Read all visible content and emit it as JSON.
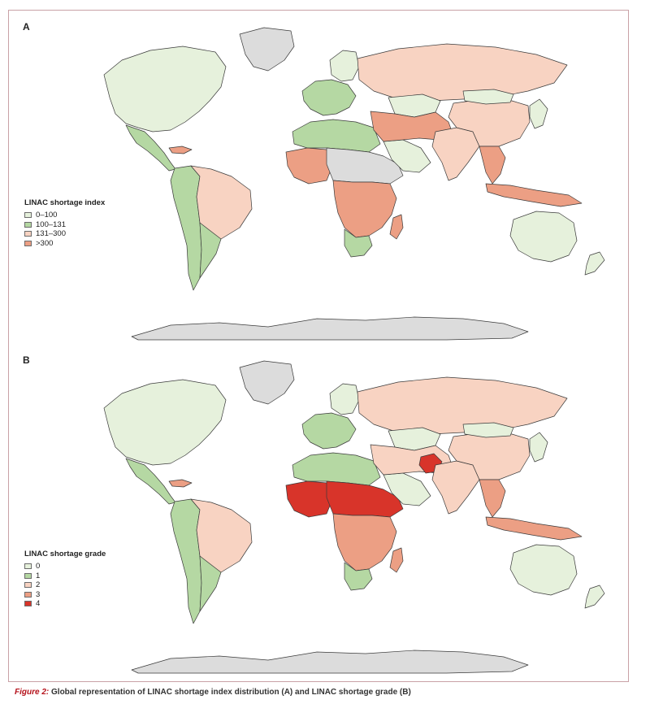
{
  "colors": {
    "frame": "#c9a1a6",
    "water": "#ffffff",
    "nodata": "#dcdcdc",
    "c0": "#e6f1dc",
    "c1": "#b5d8a3",
    "c2": "#f8d3c2",
    "c3": "#ec9f84",
    "c4": "#d8342a",
    "stroke": "#3a3a3a"
  },
  "panel_a": {
    "letter": "A",
    "legend_title": "LINAC shortage index",
    "legend": [
      {
        "label": "0–100",
        "color": "#e6f1dc"
      },
      {
        "label": "100–131",
        "color": "#b5d8a3"
      },
      {
        "label": "131–300",
        "color": "#f8d3c2"
      },
      {
        "label": ">300",
        "color": "#ec9f84"
      }
    ],
    "regions": [
      {
        "name": "North America",
        "color": "#e6f1dc"
      },
      {
        "name": "Greenland",
        "color": "#dcdcdc"
      },
      {
        "name": "Mexico & Central America",
        "color": "#b5d8a3"
      },
      {
        "name": "Caribbean",
        "color": "#ec9f84"
      },
      {
        "name": "Western South America",
        "color": "#b5d8a3"
      },
      {
        "name": "Brazil",
        "color": "#f8d3c2"
      },
      {
        "name": "Southern Cone",
        "color": "#b5d8a3"
      },
      {
        "name": "Western Europe",
        "color": "#b5d8a3"
      },
      {
        "name": "Scandinavia",
        "color": "#e6f1dc"
      },
      {
        "name": "Russia",
        "color": "#f8d3c2"
      },
      {
        "name": "Kazakhstan",
        "color": "#e6f1dc"
      },
      {
        "name": "North Africa",
        "color": "#b5d8a3"
      },
      {
        "name": "West Africa",
        "color": "#ec9f84"
      },
      {
        "name": "Sahel",
        "color": "#dcdcdc"
      },
      {
        "name": "Central & East Africa",
        "color": "#ec9f84"
      },
      {
        "name": "Southern Africa",
        "color": "#b5d8a3"
      },
      {
        "name": "Madagascar",
        "color": "#ec9f84"
      },
      {
        "name": "Arabian Peninsula",
        "color": "#e6f1dc"
      },
      {
        "name": "Middle East & Central Asia",
        "color": "#ec9f84"
      },
      {
        "name": "South Asia",
        "color": "#f8d3c2"
      },
      {
        "name": "China",
        "color": "#f8d3c2"
      },
      {
        "name": "Mongolia",
        "color": "#e6f1dc"
      },
      {
        "name": "Southeast Asia",
        "color": "#ec9f84"
      },
      {
        "name": "Japan & Korea",
        "color": "#e6f1dc"
      },
      {
        "name": "Indonesia",
        "color": "#ec9f84"
      },
      {
        "name": "Australia",
        "color": "#e6f1dc"
      },
      {
        "name": "New Zealand",
        "color": "#e6f1dc"
      },
      {
        "name": "Antarctica",
        "color": "#dcdcdc"
      }
    ]
  },
  "panel_b": {
    "letter": "B",
    "legend_title": "LINAC shortage grade",
    "legend": [
      {
        "label": "0",
        "color": "#e6f1dc"
      },
      {
        "label": "1",
        "color": "#b5d8a3"
      },
      {
        "label": "2",
        "color": "#f8d3c2"
      },
      {
        "label": "3",
        "color": "#ec9f84"
      },
      {
        "label": "4",
        "color": "#d8342a"
      }
    ],
    "regions": [
      {
        "name": "North America",
        "color": "#e6f1dc"
      },
      {
        "name": "Greenland",
        "color": "#dcdcdc"
      },
      {
        "name": "Mexico & Central America",
        "color": "#b5d8a3"
      },
      {
        "name": "Caribbean",
        "color": "#ec9f84"
      },
      {
        "name": "Western South America",
        "color": "#b5d8a3"
      },
      {
        "name": "Brazil",
        "color": "#f8d3c2"
      },
      {
        "name": "Southern Cone",
        "color": "#b5d8a3"
      },
      {
        "name": "Western Europe",
        "color": "#b5d8a3"
      },
      {
        "name": "Scandinavia",
        "color": "#e6f1dc"
      },
      {
        "name": "Russia",
        "color": "#f8d3c2"
      },
      {
        "name": "Kazakhstan",
        "color": "#e6f1dc"
      },
      {
        "name": "North Africa",
        "color": "#b5d8a3"
      },
      {
        "name": "West Africa",
        "color": "#d8342a"
      },
      {
        "name": "Sahel",
        "color": "#d8342a"
      },
      {
        "name": "Central & East Africa",
        "color": "#ec9f84"
      },
      {
        "name": "Southern Africa",
        "color": "#b5d8a3"
      },
      {
        "name": "Madagascar",
        "color": "#ec9f84"
      },
      {
        "name": "Arabian Peninsula",
        "color": "#e6f1dc"
      },
      {
        "name": "Middle East & Central Asia",
        "color": "#f8d3c2"
      },
      {
        "name": "Afghanistan",
        "color": "#d8342a"
      },
      {
        "name": "South Asia",
        "color": "#f8d3c2"
      },
      {
        "name": "China",
        "color": "#f8d3c2"
      },
      {
        "name": "Mongolia",
        "color": "#e6f1dc"
      },
      {
        "name": "Southeast Asia",
        "color": "#ec9f84"
      },
      {
        "name": "Japan & Korea",
        "color": "#e6f1dc"
      },
      {
        "name": "Indonesia",
        "color": "#ec9f84"
      },
      {
        "name": "Australia",
        "color": "#e6f1dc"
      },
      {
        "name": "New Zealand",
        "color": "#e6f1dc"
      },
      {
        "name": "Antarctica",
        "color": "#dcdcdc"
      }
    ]
  },
  "caption": {
    "label": "Figure 2:",
    "text": "Global representation of LINAC shortage index distribution (A) and LINAC shortage grade (B)"
  }
}
